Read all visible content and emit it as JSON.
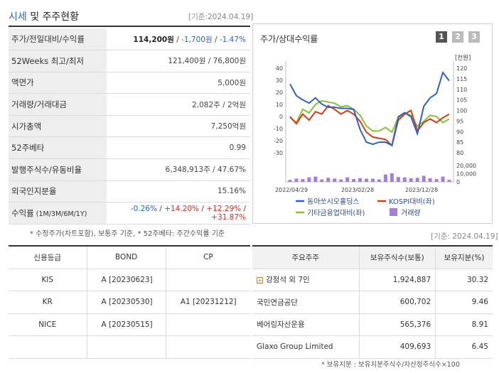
{
  "header": {
    "title_part1": "시세",
    "title_part2": " 및 주주현황",
    "base_date": "[기준:2024.04.19]"
  },
  "quote": {
    "rows": [
      {
        "label": "주가/전일대비/수익률",
        "price": "114,200원",
        "sep1": " / ",
        "change": "-1,700원",
        "sep2": " / ",
        "rate": "-1.47%"
      },
      {
        "label": "52Weeks 최고/최저",
        "value": "121,400원 / 76,800원"
      },
      {
        "label": "액면가",
        "value": "5,000원"
      },
      {
        "label": "거래량/거래대금",
        "value": "2,082주 / 2억원"
      },
      {
        "label": "시가총액",
        "value": "7,250억원"
      },
      {
        "label": "52주베타",
        "value": "0.99"
      },
      {
        "label": "발행주식수/유동비율",
        "value": "6,348,913주 / 47.67%"
      },
      {
        "label": "외국인지분율",
        "value": "15.16%"
      }
    ],
    "returns": {
      "label": "수익률",
      "sub_label": " (1M/3M/6M/1Y)",
      "r1m": "-0.26%",
      "r3m": "+14.20%",
      "r6m": "+12.29%",
      "r1y": "+31.87%",
      "sep": " / "
    },
    "note": "* 수정주가(차트포함), 보통주 기준, * 52주베타: 주간수익률 기준"
  },
  "chart_panel": {
    "title": "주가/상대수익률",
    "pages": [
      "1",
      "2",
      "3"
    ],
    "legend": [
      "동아쏘시오홀딩스",
      "KOSPI대비(좌)",
      "기타금융업대비(좌)",
      "거래량"
    ],
    "colors": {
      "price": "#2a63c7",
      "kospi": "#d93a14",
      "sector": "#86c332",
      "volume": "#a47fd6"
    }
  },
  "chart_data": {
    "type": "line",
    "x_tick_labels": [
      "2022/04/29",
      "2023/02/28",
      "2023/12/28"
    ],
    "left_axis": {
      "ticks": [
        40,
        30,
        20,
        10,
        0,
        -10,
        -20,
        -30
      ],
      "range": [
        -30,
        40
      ]
    },
    "right_axis": {
      "unit": "[천원]",
      "ticks": [
        120,
        115,
        110,
        105,
        100,
        95,
        90,
        85,
        80
      ],
      "range": [
        80,
        120
      ]
    },
    "volume_axis": {
      "ticks": [
        "20,000",
        "10,000",
        "0"
      ],
      "range": [
        0,
        20000
      ]
    },
    "series": [
      {
        "name": "동아쏘시오홀딩스",
        "axis": "right",
        "values": [
          112.5,
          107,
          105,
          103.5,
          106,
          103,
          101.5,
          101.5,
          101,
          101,
          100.5,
          91,
          85,
          84,
          85,
          85,
          83.5,
          97,
          99,
          97,
          89,
          102,
          106,
          108,
          118,
          114
        ]
      },
      {
        "name": "KOSPI대비(좌)",
        "axis": "left",
        "values": [
          0,
          -6,
          2,
          -3,
          4,
          2,
          9,
          6,
          2,
          5,
          2,
          -4,
          -13,
          -17,
          -18,
          -19,
          -24,
          -3,
          2,
          5,
          -12,
          -5,
          -2,
          -5,
          -1,
          2
        ]
      },
      {
        "name": "기타금융업대비(좌)",
        "axis": "left",
        "values": [
          -1,
          -5,
          6,
          3,
          10,
          13,
          12,
          11,
          8,
          9,
          6,
          1,
          -8,
          -12,
          -12,
          -9,
          -13,
          -1,
          3,
          1,
          -8,
          -4,
          1,
          0,
          -5,
          -2
        ]
      },
      {
        "name": "거래량",
        "axis": "volume",
        "values": [
          2500,
          4000,
          3500,
          5500,
          6500,
          3000,
          5000,
          4000,
          3000,
          5500,
          3500,
          4500,
          4000,
          4000,
          3000,
          9000,
          10500,
          6000,
          5500,
          4500,
          5000,
          7500,
          4500,
          3500,
          6500,
          2500
        ]
      }
    ]
  },
  "credit": {
    "headers": [
      "신용등급",
      "BOND",
      "CP"
    ],
    "rows": [
      {
        "agency": "KIS",
        "bond": "A  [20230623]",
        "cp": ""
      },
      {
        "agency": "KR",
        "bond": "A  [20230530]",
        "cp": "A1  [20231212]"
      },
      {
        "agency": "NICE",
        "bond": "A  [20230515]",
        "cp": ""
      },
      {
        "agency": "",
        "bond": "",
        "cp": ""
      }
    ]
  },
  "holders": {
    "base_date": "[기준: 2024.04.19]",
    "headers": [
      "주요주주",
      "보유주식수(보통)",
      "보유지분(%)"
    ],
    "rows": [
      {
        "name": "강정석 외 7인",
        "shares": "1,924,887",
        "pct": "30.32",
        "expandable": true
      },
      {
        "name": "국민연금공단",
        "shares": "600,702",
        "pct": "9.46"
      },
      {
        "name": "베어링자산운용",
        "shares": "565,376",
        "pct": "8.91"
      },
      {
        "name": "Glaxo Group Limited",
        "shares": "409,693",
        "pct": "6.45"
      }
    ],
    "note": "* 보유지분 : 보유지분주식수/자산정주식수×100"
  }
}
